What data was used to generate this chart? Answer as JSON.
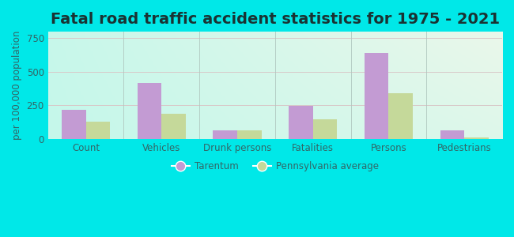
{
  "title": "Fatal road traffic accident statistics for 1975 - 2021",
  "categories": [
    "Count",
    "Vehicles",
    "Drunk persons",
    "Fatalities",
    "Persons",
    "Pedestrians"
  ],
  "tarentum": [
    220,
    420,
    65,
    245,
    640,
    65
  ],
  "pa_average": [
    130,
    190,
    65,
    145,
    340,
    15
  ],
  "tarentum_color": "#c39bd3",
  "pa_color": "#c5d99a",
  "ylabel": "per 100,000 population",
  "ylim": [
    0,
    800
  ],
  "yticks": [
    0,
    250,
    500,
    750
  ],
  "legend_tarentum": "Tarentum",
  "legend_pa": "Pennsylvania average",
  "bar_width": 0.32,
  "background_outer": "#00e8e8",
  "grid_color": "#d8c8c8",
  "title_fontsize": 14,
  "label_fontsize": 8.5,
  "tick_fontsize": 8.5,
  "text_color": "#336666"
}
